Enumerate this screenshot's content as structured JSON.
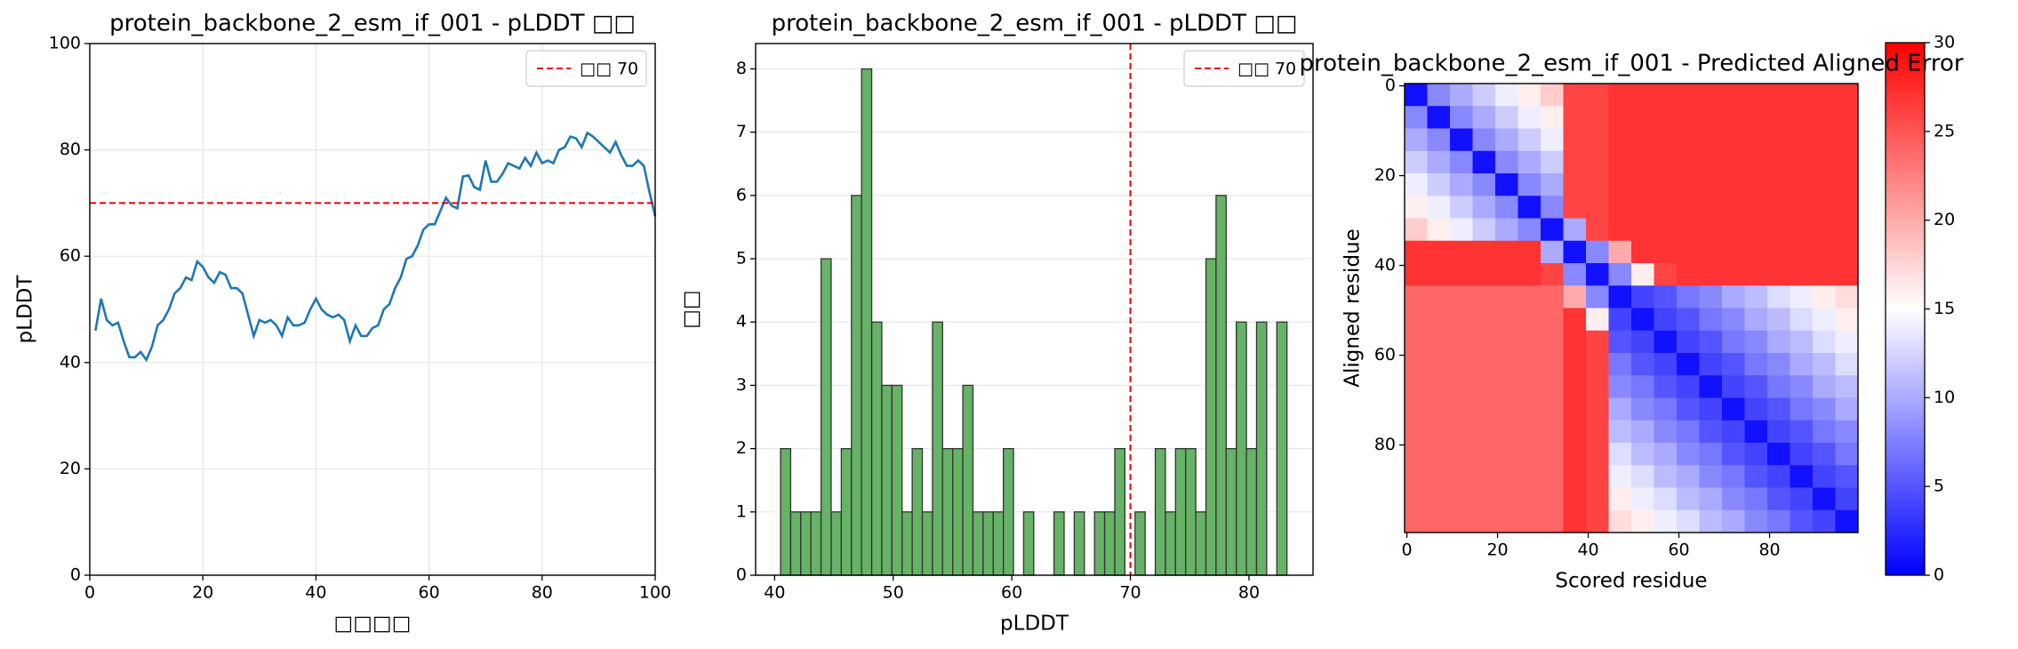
{
  "chart_data": [
    {
      "type": "line",
      "title": "protein_backbone_2_esm_if_001 - pLDDT □□",
      "xlabel": "□□□□",
      "ylabel": "pLDDT",
      "x": [
        1,
        2,
        3,
        4,
        5,
        6,
        7,
        8,
        9,
        10,
        11,
        12,
        13,
        14,
        15,
        16,
        17,
        18,
        19,
        20,
        21,
        22,
        23,
        24,
        25,
        26,
        27,
        28,
        29,
        30,
        31,
        32,
        33,
        34,
        35,
        36,
        37,
        38,
        39,
        40,
        41,
        42,
        43,
        44,
        45,
        46,
        47,
        48,
        49,
        50,
        51,
        52,
        53,
        54,
        55,
        56,
        57,
        58,
        59,
        60,
        61,
        62,
        63,
        64,
        65,
        66,
        67,
        68,
        69,
        70,
        71,
        72,
        73,
        74,
        75,
        76,
        77,
        78,
        79,
        80,
        81,
        82,
        83,
        84,
        85,
        86,
        87,
        88,
        89,
        90,
        91,
        92,
        93,
        94,
        95,
        96,
        97,
        98,
        99,
        100
      ],
      "values": [
        46,
        52,
        48,
        47,
        47.5,
        44,
        41,
        41,
        42,
        40.5,
        43,
        47,
        48,
        50,
        53,
        54,
        56,
        55.5,
        59,
        58,
        56,
        55,
        57,
        56.5,
        54,
        54,
        53,
        49,
        45,
        48,
        47.5,
        48,
        47,
        45,
        48.5,
        47,
        47,
        47.5,
        50,
        52,
        50,
        49,
        48.5,
        49,
        48,
        44,
        47,
        45,
        45,
        46.5,
        47,
        50,
        51,
        54,
        56,
        59.5,
        60,
        62,
        65,
        66,
        66,
        68.5,
        71,
        69.5,
        69,
        75,
        75.2,
        73,
        72.5,
        78,
        74,
        74,
        75.5,
        77.5,
        77,
        76.5,
        78.5,
        77,
        79.5,
        77.5,
        78,
        77.5,
        80,
        80.5,
        82.5,
        82.2,
        80.5,
        83.2,
        82.5,
        81.5,
        80.5,
        79.5,
        81.5,
        79,
        77,
        77,
        78,
        77,
        72,
        67.5
      ],
      "color": "#1f77b4",
      "hline": 70,
      "hline_label": "□□ 70",
      "hline_color": "#e8000b",
      "xlim": [
        0,
        100
      ],
      "xticks": [
        0,
        20,
        40,
        60,
        80,
        100
      ],
      "ylim": [
        0,
        100
      ],
      "yticks": [
        0,
        20,
        40,
        60,
        80,
        100
      ],
      "grid": "both",
      "legend": "upper right"
    },
    {
      "type": "histogram",
      "title": "protein_backbone_2_esm_if_001 - pLDDT □□",
      "xlabel": "pLDDT",
      "ylabel": "□□",
      "bins": [
        40.5,
        41.354,
        42.208,
        43.062,
        43.916,
        44.77,
        45.624,
        46.478,
        47.332,
        48.186,
        49.04,
        49.894,
        50.748,
        51.602,
        52.456,
        53.31,
        54.164,
        55.018,
        55.872,
        56.726,
        57.58,
        58.434,
        59.288,
        60.142,
        60.996,
        61.85,
        62.704,
        63.558,
        64.412,
        65.266,
        66.12,
        66.974,
        67.828,
        68.682,
        69.536,
        70.39,
        71.244,
        72.098,
        72.952,
        73.806,
        74.66,
        75.514,
        76.368,
        77.222,
        78.076,
        78.93,
        79.784,
        80.638,
        81.492,
        82.346,
        83.2
      ],
      "counts": [
        2,
        1,
        1,
        1,
        5,
        1,
        2,
        6,
        8,
        4,
        3,
        3,
        1,
        2,
        1,
        4,
        2,
        2,
        3,
        1,
        1,
        1,
        2,
        0,
        1,
        0,
        0,
        1,
        0,
        1,
        0,
        1,
        1,
        2,
        0,
        1,
        0,
        2,
        1,
        2,
        2,
        1,
        5,
        6,
        2,
        4,
        2,
        4,
        0,
        4
      ],
      "color": "#66b266",
      "edgecolor": "#333333",
      "vline": 70,
      "vline_label": "□□ 70",
      "vline_color": "#e8000b",
      "xlim": [
        38.4,
        85.4
      ],
      "xticks": [
        40,
        50,
        60,
        70,
        80
      ],
      "ylim": [
        0,
        8.4
      ],
      "yticks": [
        0,
        1,
        2,
        3,
        4,
        5,
        6,
        7,
        8
      ],
      "grid": "y",
      "legend": "upper right"
    },
    {
      "type": "heatmap",
      "title": "protein_backbone_2_esm_if_001 - Predicted Aligned Error",
      "xlabel": "Scored residue",
      "ylabel": "Aligned residue",
      "matrix": [
        [
          1,
          8,
          10,
          12,
          14,
          16,
          18,
          26,
          26,
          27,
          27,
          27,
          27,
          27,
          27,
          27,
          27,
          27,
          27,
          27
        ],
        [
          8,
          1,
          8,
          10,
          12,
          14,
          16,
          26,
          26,
          27,
          27,
          27,
          27,
          27,
          27,
          27,
          27,
          27,
          27,
          27
        ],
        [
          10,
          8,
          1,
          8,
          10,
          12,
          14,
          26,
          26,
          27,
          27,
          27,
          27,
          27,
          27,
          27,
          27,
          27,
          27,
          27
        ],
        [
          12,
          10,
          8,
          1,
          8,
          10,
          12,
          26,
          26,
          27,
          27,
          27,
          27,
          27,
          27,
          27,
          27,
          27,
          27,
          27
        ],
        [
          14,
          12,
          10,
          8,
          1,
          8,
          10,
          26,
          26,
          27,
          27,
          27,
          27,
          27,
          27,
          27,
          27,
          27,
          27,
          27
        ],
        [
          16,
          14,
          12,
          10,
          8,
          1,
          8,
          26,
          26,
          27,
          27,
          27,
          27,
          27,
          27,
          27,
          27,
          27,
          27,
          27
        ],
        [
          18,
          16,
          14,
          12,
          10,
          8,
          1,
          10,
          26,
          27,
          27,
          27,
          27,
          27,
          27,
          27,
          27,
          27,
          27,
          27
        ],
        [
          27,
          27,
          27,
          27,
          27,
          27,
          10,
          1,
          8,
          20,
          27,
          27,
          27,
          27,
          27,
          27,
          27,
          27,
          27,
          27
        ],
        [
          27,
          27,
          27,
          27,
          27,
          27,
          26,
          8,
          1,
          8,
          16,
          26,
          27,
          27,
          27,
          27,
          27,
          27,
          27,
          27
        ],
        [
          24,
          24,
          24,
          24,
          24,
          24,
          24,
          20,
          8,
          1,
          4,
          5,
          7,
          8,
          10,
          11,
          13,
          14,
          16,
          17
        ],
        [
          24,
          24,
          24,
          24,
          24,
          24,
          24,
          27,
          16,
          4,
          1,
          4,
          5,
          7,
          8,
          10,
          11,
          13,
          14,
          16
        ],
        [
          24,
          24,
          24,
          24,
          24,
          24,
          24,
          27,
          26,
          5,
          4,
          1,
          4,
          5,
          7,
          8,
          10,
          11,
          13,
          14
        ],
        [
          24,
          24,
          24,
          24,
          24,
          24,
          24,
          27,
          26,
          7,
          5,
          4,
          1,
          4,
          5,
          7,
          8,
          10,
          11,
          13
        ],
        [
          24,
          24,
          24,
          24,
          24,
          24,
          24,
          27,
          26,
          8,
          7,
          5,
          4,
          1,
          4,
          5,
          7,
          8,
          10,
          11
        ],
        [
          24,
          24,
          24,
          24,
          24,
          24,
          24,
          27,
          26,
          10,
          8,
          7,
          5,
          4,
          1,
          4,
          5,
          7,
          8,
          10
        ],
        [
          24,
          24,
          24,
          24,
          24,
          24,
          24,
          27,
          26,
          11,
          10,
          8,
          7,
          5,
          4,
          1,
          4,
          5,
          7,
          8
        ],
        [
          24,
          24,
          24,
          24,
          24,
          24,
          24,
          27,
          26,
          13,
          11,
          10,
          8,
          7,
          5,
          4,
          1,
          4,
          5,
          7
        ],
        [
          24,
          24,
          24,
          24,
          24,
          24,
          24,
          27,
          26,
          14,
          13,
          11,
          10,
          8,
          7,
          5,
          4,
          1,
          4,
          5
        ],
        [
          24,
          24,
          24,
          24,
          24,
          24,
          24,
          27,
          26,
          16,
          14,
          13,
          11,
          10,
          8,
          7,
          5,
          4,
          1,
          4
        ],
        [
          24,
          24,
          24,
          24,
          24,
          24,
          24,
          27,
          26,
          17,
          16,
          14,
          13,
          11,
          10,
          8,
          7,
          5,
          4,
          1
        ]
      ],
      "cmap": "bwr",
      "clim": [
        0,
        30
      ],
      "cbar_ticks": [
        0,
        5,
        10,
        15,
        20,
        25,
        30
      ],
      "xlim": [
        -0.5,
        99.5
      ],
      "xticks": [
        0,
        20,
        40,
        60,
        80
      ],
      "ylim": [
        99.5,
        -0.5
      ],
      "yticks": [
        0,
        20,
        40,
        60,
        80
      ]
    }
  ]
}
